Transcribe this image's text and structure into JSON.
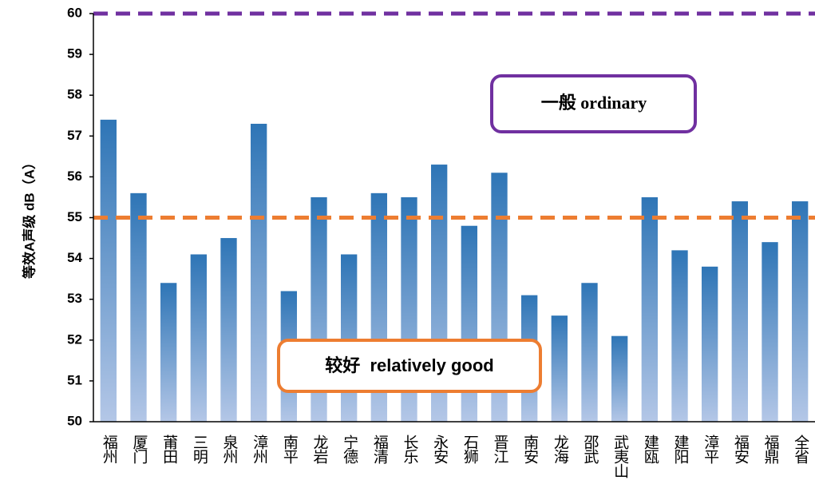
{
  "chart_data": {
    "type": "bar",
    "y_label": "等效A声级 dB（A）",
    "categories": [
      "福州",
      "厦门",
      "莆田",
      "三明",
      "泉州",
      "漳州",
      "南平",
      "龙岩",
      "宁德",
      "福清",
      "长乐",
      "永安",
      "石狮",
      "晋江",
      "南安",
      "龙海",
      "邵武",
      "武夷山",
      "建瓯",
      "建阳",
      "漳平",
      "福安",
      "福鼎",
      "全省"
    ],
    "values": [
      57.4,
      55.6,
      53.4,
      54.1,
      54.5,
      57.3,
      53.2,
      55.5,
      54.1,
      55.6,
      55.5,
      56.3,
      54.8,
      56.1,
      53.1,
      52.6,
      53.4,
      52.1,
      55.5,
      54.2,
      53.8,
      55.4,
      54.4,
      55.4
    ],
    "color": "#2e75b6",
    "ylim": [
      50,
      60
    ],
    "yticks": [
      50,
      51,
      52,
      53,
      54,
      55,
      56,
      57,
      58,
      59,
      60
    ],
    "reference_lines": [
      {
        "value": 60,
        "color": "#7030a0"
      },
      {
        "value": 55,
        "color": "#ed7d31"
      }
    ],
    "annotations": [
      {
        "text": "一般 ordinary",
        "color": "#7030a0"
      },
      {
        "text": "较好  relatively good",
        "color": "#ed7d31"
      }
    ]
  }
}
